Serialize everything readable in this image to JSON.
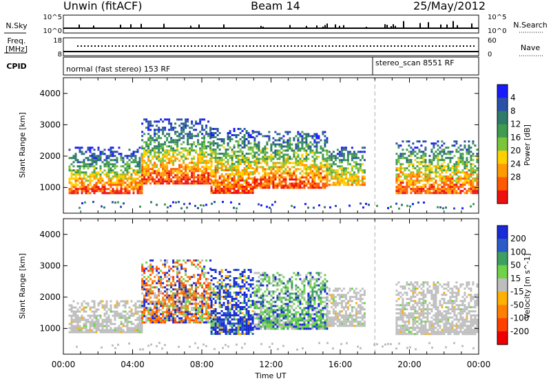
{
  "header": {
    "left": "Unwin (fitACF)",
    "center": "Beam 14",
    "right": "25/May/2012"
  },
  "top_panels": {
    "nsky_label": "N.Sky",
    "nsky_ticks": [
      "10^5",
      "10^0"
    ],
    "nsearch_label": "N.Search",
    "nsearch_ticks": [
      "10^5",
      "10^0"
    ],
    "freq_label_1": "Freq.",
    "freq_label_2": "[MHz]",
    "freq_ticks": [
      "18",
      "8"
    ],
    "nave_label": "Nave",
    "nave_ticks": [
      "60",
      "0"
    ],
    "cpid_label": "CPID",
    "cpid_segments": [
      {
        "text": "normal (fast stereo) 153 RF",
        "start_hour": 0
      },
      {
        "text": "stereo_scan 8551 RF",
        "start_hour": 18
      }
    ]
  },
  "chart_data": [
    {
      "type": "heatmap",
      "title": "",
      "xlabel": "Time UT",
      "ylabel": "Slant Range [km]",
      "xlim_hours": [
        0,
        24
      ],
      "ylim_km": [
        180,
        4500
      ],
      "x_tick_labels": [
        "00:00",
        "04:00",
        "08:00",
        "12:00",
        "16:00",
        "20:00",
        "00:00"
      ],
      "y_tick_labels": [
        "1000",
        "2000",
        "3000",
        "4000"
      ],
      "y_tick_values": [
        1000,
        2000,
        3000,
        4000
      ],
      "colorbar": {
        "label": "Power [dB]",
        "tick_labels": [
          "4",
          "8",
          "12",
          "16",
          "20",
          "24",
          "28"
        ],
        "colors": [
          "#1a1aff",
          "#2a50a8",
          "#2f7a68",
          "#3e9b50",
          "#7cc43c",
          "#ffd000",
          "#ff9a00",
          "#ff5a00",
          "#ee1010"
        ]
      },
      "mode_change_hour": 18,
      "scatter_bands": [
        {
          "t_start": 0.3,
          "t_end": 4.5,
          "range_min": 800,
          "range_max": 2300,
          "color_bias": "high"
        },
        {
          "t_start": 4.5,
          "t_end": 8.5,
          "range_min": 1100,
          "range_max": 3200,
          "color_bias": "high"
        },
        {
          "t_start": 8.5,
          "t_end": 11.0,
          "range_min": 850,
          "range_max": 2900,
          "color_bias": "mixed"
        },
        {
          "t_start": 11.0,
          "t_end": 15.2,
          "range_min": 1000,
          "range_max": 2800,
          "color_bias": "mixed"
        },
        {
          "t_start": 15.2,
          "t_end": 17.4,
          "range_min": 1100,
          "range_max": 2300,
          "color_bias": "low"
        },
        {
          "t_start": 19.2,
          "t_end": 23.9,
          "range_min": 800,
          "range_max": 2500,
          "color_bias": "mixed"
        }
      ]
    },
    {
      "type": "heatmap",
      "title": "",
      "xlabel": "Time UT",
      "ylabel": "Slant Range [km]",
      "xlim_hours": [
        0,
        24
      ],
      "ylim_km": [
        180,
        4500
      ],
      "x_tick_labels": [
        "00:00",
        "04:00",
        "08:00",
        "12:00",
        "16:00",
        "20:00",
        "00:00"
      ],
      "y_tick_labels": [
        "1000",
        "2000",
        "3000",
        "4000"
      ],
      "y_tick_values": [
        1000,
        2000,
        3000,
        4000
      ],
      "colorbar": {
        "label": "Velocity [m s^-1]",
        "tick_labels": [
          "200",
          "100",
          "50",
          "15",
          "-15",
          "-50",
          "-100",
          "-200"
        ],
        "colors": [
          "#1a2ad6",
          "#2a5cc8",
          "#3ea060",
          "#6fd24a",
          "#bebebe",
          "#ffb000",
          "#ff8000",
          "#ff4000",
          "#ee0000"
        ]
      },
      "mode_change_hour": 18,
      "scatter_bands": [
        {
          "t_start": 0.3,
          "t_end": 4.5,
          "range_min": 900,
          "range_max": 1900,
          "color_bias": "ground"
        },
        {
          "t_start": 4.5,
          "t_end": 8.5,
          "range_min": 1200,
          "range_max": 3200,
          "color_bias": "mixed"
        },
        {
          "t_start": 8.5,
          "t_end": 11.0,
          "range_min": 850,
          "range_max": 2900,
          "color_bias": "blue"
        },
        {
          "t_start": 11.0,
          "t_end": 15.2,
          "range_min": 1000,
          "range_max": 2800,
          "color_bias": "greenblue"
        },
        {
          "t_start": 15.2,
          "t_end": 17.4,
          "range_min": 1100,
          "range_max": 2300,
          "color_bias": "ground"
        },
        {
          "t_start": 19.2,
          "t_end": 23.9,
          "range_min": 800,
          "range_max": 2500,
          "color_bias": "ground"
        }
      ]
    }
  ]
}
